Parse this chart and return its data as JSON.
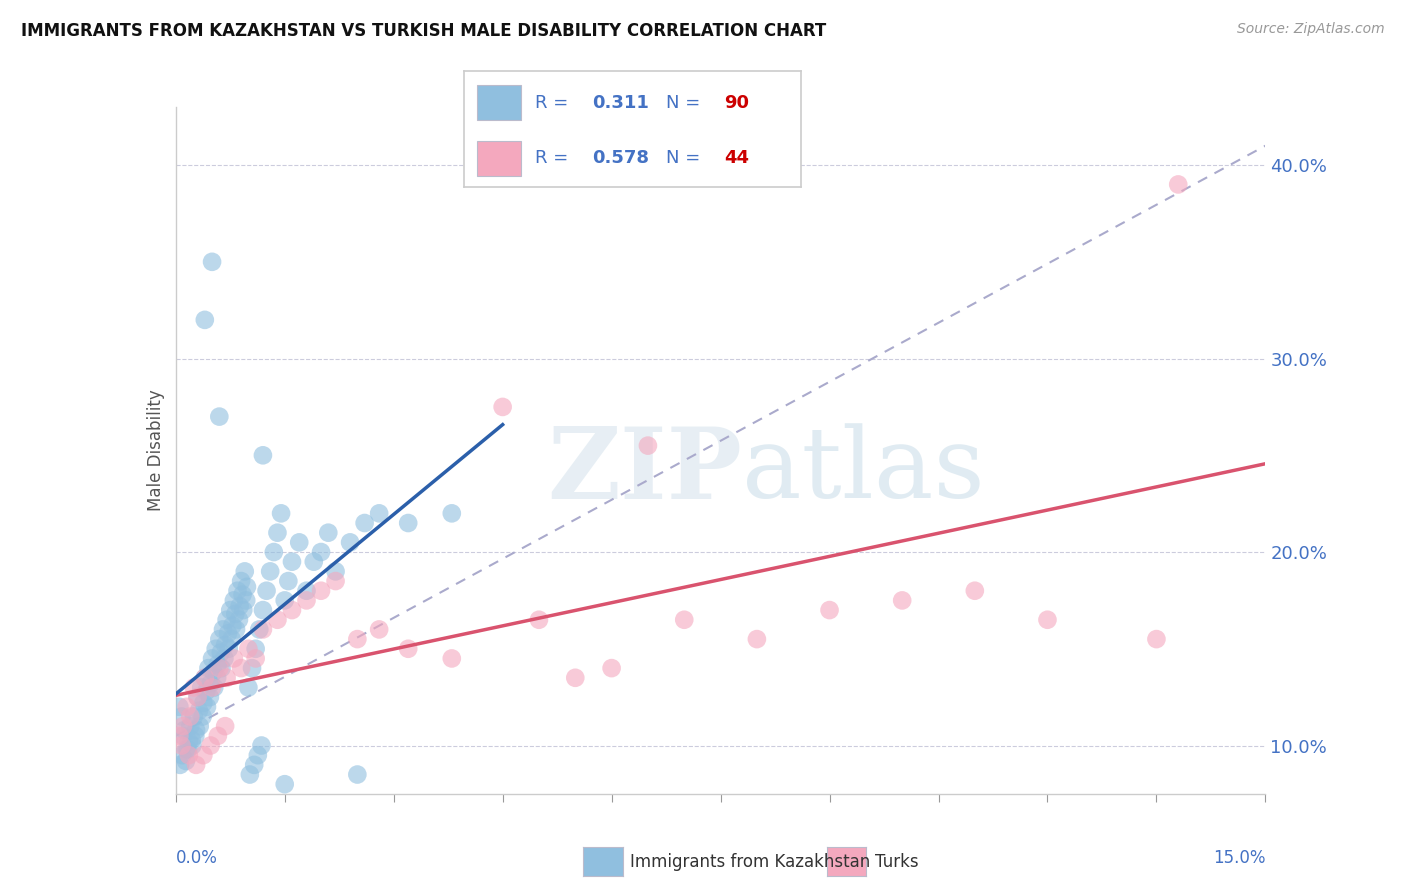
{
  "title": "IMMIGRANTS FROM KAZAKHSTAN VS TURKISH MALE DISABILITY CORRELATION CHART",
  "source": "Source: ZipAtlas.com",
  "xlabel_bottom_left": "0.0%",
  "xlabel_bottom_right": "15.0%",
  "ylabel": "Male Disability",
  "legend_label1": "Immigrants from Kazakhstan",
  "legend_label2": "Turks",
  "R1": 0.311,
  "N1": 90,
  "R2": 0.578,
  "N2": 44,
  "color_blue": "#90bfdf",
  "color_pink": "#f4a8be",
  "color_line_blue": "#2b5faa",
  "color_line_pink": "#d9536e",
  "color_line_gray": "#aaaacc",
  "color_text_blue": "#4472c4",
  "color_text_red": "#cc0000",
  "xlim": [
    0.0,
    15.0
  ],
  "ylim": [
    7.5,
    43.0
  ],
  "yticks": [
    10.0,
    20.0,
    30.0,
    40.0
  ],
  "blue_scatter_x": [
    0.05,
    0.08,
    0.1,
    0.12,
    0.15,
    0.18,
    0.2,
    0.22,
    0.25,
    0.28,
    0.3,
    0.32,
    0.35,
    0.38,
    0.4,
    0.42,
    0.45,
    0.48,
    0.5,
    0.52,
    0.55,
    0.58,
    0.6,
    0.62,
    0.65,
    0.68,
    0.7,
    0.72,
    0.75,
    0.78,
    0.8,
    0.82,
    0.85,
    0.88,
    0.9,
    0.92,
    0.95,
    0.98,
    1.0,
    1.05,
    1.1,
    1.15,
    1.2,
    1.25,
    1.3,
    1.35,
    1.4,
    1.45,
    1.5,
    1.55,
    1.6,
    1.7,
    1.8,
    1.9,
    2.0,
    2.1,
    2.2,
    2.4,
    2.6,
    2.8,
    3.2,
    3.8,
    0.06,
    0.09,
    0.14,
    0.17,
    0.23,
    0.27,
    0.33,
    0.37,
    0.43,
    0.47,
    0.53,
    0.57,
    0.63,
    0.67,
    0.73,
    0.77,
    0.83,
    0.87,
    0.93,
    0.97,
    1.02,
    1.08,
    1.13,
    1.18,
    0.4,
    0.6,
    0.5,
    1.2,
    1.5,
    2.5
  ],
  "blue_scatter_y": [
    12.0,
    11.5,
    10.5,
    10.8,
    9.8,
    10.2,
    11.0,
    10.3,
    11.5,
    10.8,
    12.5,
    11.8,
    13.0,
    12.2,
    13.5,
    12.8,
    14.0,
    13.2,
    14.5,
    13.8,
    15.0,
    14.2,
    15.5,
    14.8,
    16.0,
    15.2,
    16.5,
    15.8,
    17.0,
    16.2,
    17.5,
    16.8,
    18.0,
    17.2,
    18.5,
    17.8,
    19.0,
    18.2,
    13.0,
    14.0,
    15.0,
    16.0,
    17.0,
    18.0,
    19.0,
    20.0,
    21.0,
    22.0,
    17.5,
    18.5,
    19.5,
    20.5,
    18.0,
    19.5,
    20.0,
    21.0,
    19.0,
    20.5,
    21.5,
    22.0,
    21.5,
    22.0,
    9.0,
    9.5,
    9.2,
    9.8,
    10.0,
    10.5,
    11.0,
    11.5,
    12.0,
    12.5,
    13.0,
    13.5,
    14.0,
    14.5,
    15.0,
    15.5,
    16.0,
    16.5,
    17.0,
    17.5,
    8.5,
    9.0,
    9.5,
    10.0,
    32.0,
    27.0,
    35.0,
    25.0,
    8.0,
    8.5
  ],
  "pink_scatter_x": [
    0.05,
    0.1,
    0.15,
    0.2,
    0.25,
    0.3,
    0.4,
    0.5,
    0.6,
    0.7,
    0.8,
    0.9,
    1.0,
    1.1,
    1.2,
    1.4,
    1.6,
    1.8,
    2.0,
    2.2,
    2.5,
    2.8,
    3.2,
    3.8,
    4.5,
    5.0,
    5.5,
    6.0,
    7.0,
    8.0,
    9.0,
    10.0,
    11.0,
    12.0,
    13.5,
    0.08,
    0.18,
    0.28,
    0.38,
    0.48,
    0.58,
    0.68,
    13.8,
    6.5
  ],
  "pink_scatter_y": [
    10.5,
    11.0,
    12.0,
    11.5,
    13.0,
    12.5,
    13.5,
    13.0,
    14.0,
    13.5,
    14.5,
    14.0,
    15.0,
    14.5,
    16.0,
    16.5,
    17.0,
    17.5,
    18.0,
    18.5,
    15.5,
    16.0,
    15.0,
    14.5,
    27.5,
    16.5,
    13.5,
    14.0,
    16.5,
    15.5,
    17.0,
    17.5,
    18.0,
    16.5,
    15.5,
    10.0,
    9.5,
    9.0,
    9.5,
    10.0,
    10.5,
    11.0,
    39.0,
    25.5
  ]
}
